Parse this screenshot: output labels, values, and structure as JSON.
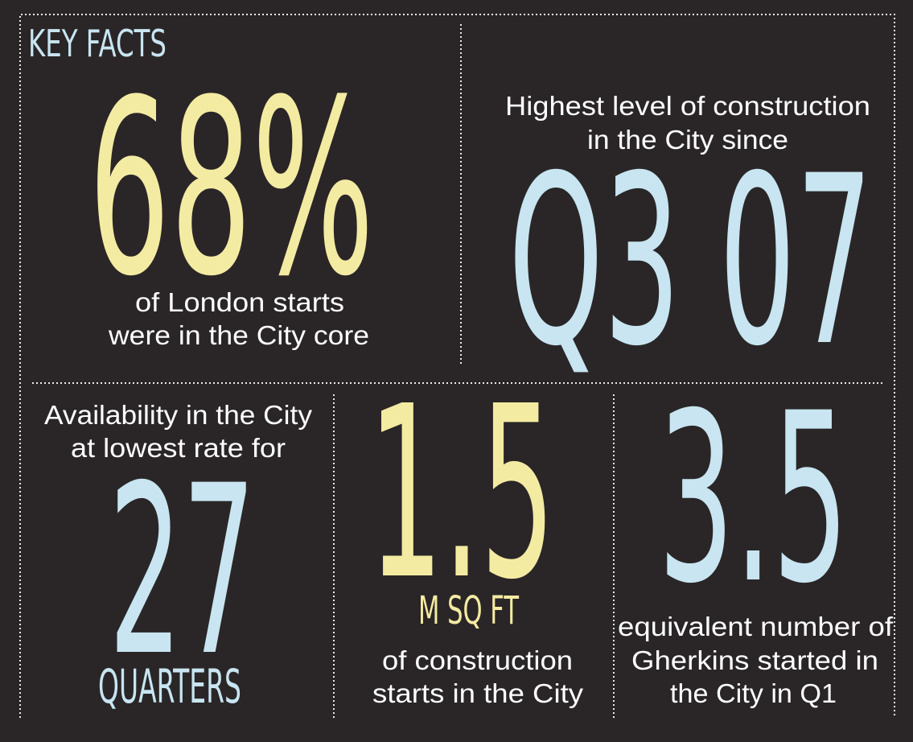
{
  "title": "KEY FACTS",
  "facts": [
    {
      "value": "68%",
      "caption": [
        "of London starts",
        "were in the City core"
      ]
    },
    {
      "intro": [
        "Highest level of construction",
        "in the City since"
      ],
      "value": "Q3 07"
    },
    {
      "intro": [
        "Availability in the City",
        "at lowest rate for"
      ],
      "value": "27",
      "unit": "QUARTERS"
    },
    {
      "value": "1.5",
      "unit": "M SQ FT",
      "caption": [
        "of construction",
        "starts in the City"
      ]
    },
    {
      "value": "3.5",
      "caption": [
        "equivalent number of",
        "Gherkins started in",
        "the City in Q1"
      ]
    }
  ]
}
